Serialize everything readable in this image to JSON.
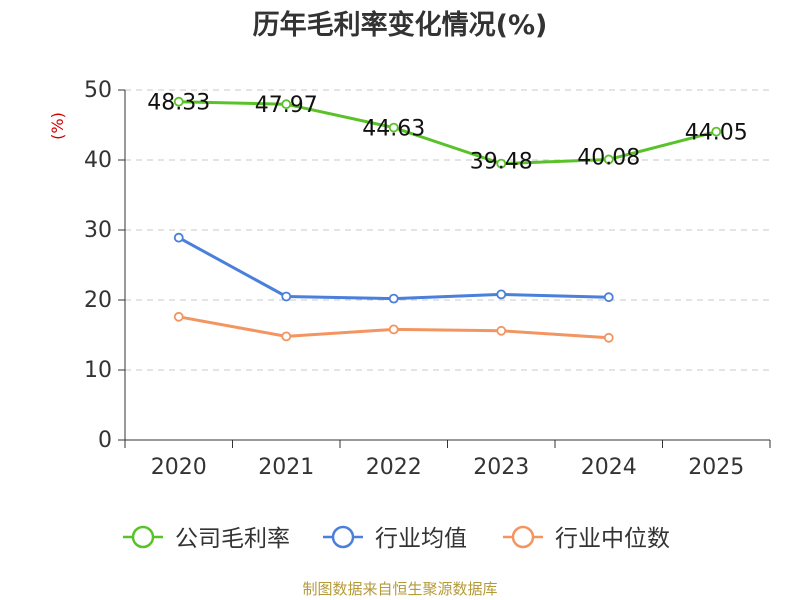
{
  "chart_data": {
    "type": "line",
    "title": "历年毛利率变化情况(%)",
    "ylabel": "(%)",
    "categories": [
      "2020",
      "2021",
      "2022",
      "2023",
      "2024",
      "2025"
    ],
    "ylim": [
      0,
      50
    ],
    "yticks": [
      0,
      10,
      20,
      30,
      40,
      50
    ],
    "grid": true,
    "legend_position": "bottom",
    "series": [
      {
        "name": "公司毛利率",
        "color": "#5ac229",
        "values": [
          48.33,
          47.97,
          44.63,
          39.48,
          40.08,
          44.05
        ],
        "labels": [
          "48.33",
          "47.97",
          "44.63",
          "39.48",
          "40.08",
          "44.05"
        ]
      },
      {
        "name": "行业均值",
        "color": "#4a7fdc",
        "values": [
          28.9,
          20.5,
          20.2,
          20.8,
          20.4,
          null
        ]
      },
      {
        "name": "行业中位数",
        "color": "#f39561",
        "values": [
          17.6,
          14.8,
          15.8,
          15.6,
          14.6,
          null
        ]
      }
    ]
  },
  "footer": {
    "source": "制图数据来自恒生聚源数据库"
  },
  "colors": {
    "title": "#333333",
    "axis": "#333333",
    "grid": "#c8c8c8",
    "ylabel": "#d40000",
    "footer": "#b59a3a"
  }
}
